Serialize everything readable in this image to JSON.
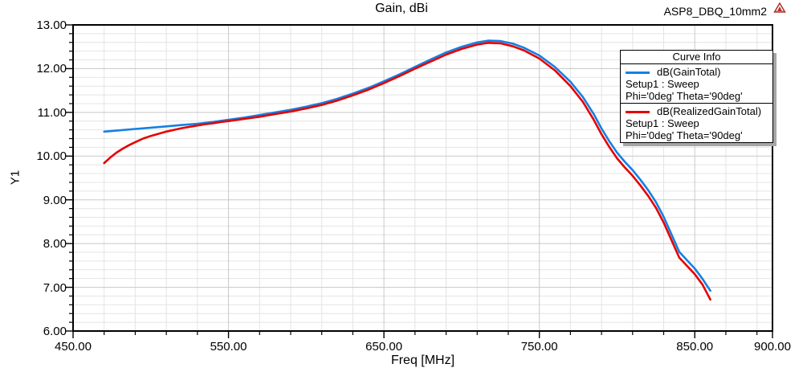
{
  "header": {
    "model_name": "ASP8_DBQ_10mm2",
    "logo_color": "#c03028"
  },
  "legend": {
    "title": "Curve Info",
    "entries": [
      {
        "label": "dB(GainTotal)",
        "color": "#1580e4",
        "line1": "Setup1 : Sweep",
        "line2": "Phi='0deg' Theta='90deg'"
      },
      {
        "label": "dB(RealizedGainTotal)",
        "color": "#e60000",
        "line1": "Setup1 : Sweep",
        "line2": "Phi='0deg' Theta='90deg'"
      }
    ]
  },
  "chart_data": {
    "type": "line",
    "title": "Gain, dBi",
    "xlabel": "Freq [MHz]",
    "ylabel": "Y1",
    "xlim": [
      450,
      900
    ],
    "ylim": [
      6,
      13
    ],
    "grid": "on",
    "legend_position": "top-right",
    "x_minor_step": 20,
    "y_minor_step": 0.2,
    "x_ticks": [
      {
        "v": 450,
        "label": "450.00"
      },
      {
        "v": 550,
        "label": "550.00"
      },
      {
        "v": 650,
        "label": "650.00"
      },
      {
        "v": 750,
        "label": "750.00"
      },
      {
        "v": 850,
        "label": "850.00"
      },
      {
        "v": 900,
        "label": "900.00"
      }
    ],
    "y_ticks": [
      {
        "v": 13,
        "label": "13.00"
      },
      {
        "v": 12,
        "label": "12.00"
      },
      {
        "v": 11,
        "label": "11.00"
      },
      {
        "v": 10,
        "label": "10.00"
      },
      {
        "v": 9,
        "label": "9.00"
      },
      {
        "v": 8,
        "label": "8.00"
      },
      {
        "v": 7,
        "label": "7.00"
      },
      {
        "v": 6,
        "label": "6.00"
      }
    ],
    "series": [
      {
        "name": "dB(GainTotal)",
        "color": "#1580e4",
        "points": [
          [
            470,
            10.56
          ],
          [
            480,
            10.59
          ],
          [
            490,
            10.62
          ],
          [
            500,
            10.65
          ],
          [
            510,
            10.68
          ],
          [
            520,
            10.71
          ],
          [
            530,
            10.74
          ],
          [
            540,
            10.78
          ],
          [
            550,
            10.83
          ],
          [
            560,
            10.88
          ],
          [
            570,
            10.94
          ],
          [
            580,
            11.0
          ],
          [
            590,
            11.06
          ],
          [
            600,
            11.13
          ],
          [
            610,
            11.21
          ],
          [
            620,
            11.31
          ],
          [
            630,
            11.43
          ],
          [
            640,
            11.56
          ],
          [
            650,
            11.71
          ],
          [
            660,
            11.87
          ],
          [
            670,
            12.04
          ],
          [
            680,
            12.21
          ],
          [
            690,
            12.37
          ],
          [
            700,
            12.5
          ],
          [
            710,
            12.6
          ],
          [
            717,
            12.64
          ],
          [
            725,
            12.63
          ],
          [
            733,
            12.57
          ],
          [
            740,
            12.48
          ],
          [
            750,
            12.3
          ],
          [
            760,
            12.04
          ],
          [
            770,
            11.7
          ],
          [
            778,
            11.35
          ],
          [
            785,
            10.96
          ],
          [
            790,
            10.63
          ],
          [
            795,
            10.34
          ],
          [
            800,
            10.08
          ],
          [
            805,
            9.87
          ],
          [
            810,
            9.68
          ],
          [
            815,
            9.46
          ],
          [
            820,
            9.22
          ],
          [
            825,
            8.95
          ],
          [
            830,
            8.61
          ],
          [
            835,
            8.21
          ],
          [
            840,
            7.81
          ],
          [
            845,
            7.62
          ],
          [
            850,
            7.43
          ],
          [
            855,
            7.19
          ],
          [
            860,
            6.92
          ]
        ]
      },
      {
        "name": "dB(RealizedGainTotal)",
        "color": "#e60000",
        "points": [
          [
            470,
            9.84
          ],
          [
            474,
            9.97
          ],
          [
            478,
            10.08
          ],
          [
            482,
            10.17
          ],
          [
            486,
            10.25
          ],
          [
            490,
            10.32
          ],
          [
            495,
            10.4
          ],
          [
            500,
            10.46
          ],
          [
            505,
            10.51
          ],
          [
            510,
            10.56
          ],
          [
            515,
            10.6
          ],
          [
            520,
            10.64
          ],
          [
            525,
            10.67
          ],
          [
            530,
            10.7
          ],
          [
            535,
            10.73
          ],
          [
            540,
            10.75
          ],
          [
            545,
            10.78
          ],
          [
            550,
            10.8
          ],
          [
            560,
            10.85
          ],
          [
            570,
            10.9
          ],
          [
            580,
            10.96
          ],
          [
            590,
            11.02
          ],
          [
            600,
            11.09
          ],
          [
            610,
            11.17
          ],
          [
            620,
            11.27
          ],
          [
            630,
            11.39
          ],
          [
            640,
            11.52
          ],
          [
            650,
            11.67
          ],
          [
            660,
            11.83
          ],
          [
            670,
            12.0
          ],
          [
            680,
            12.16
          ],
          [
            690,
            12.32
          ],
          [
            700,
            12.45
          ],
          [
            710,
            12.55
          ],
          [
            717,
            12.59
          ],
          [
            725,
            12.58
          ],
          [
            733,
            12.51
          ],
          [
            740,
            12.42
          ],
          [
            750,
            12.23
          ],
          [
            760,
            11.96
          ],
          [
            770,
            11.6
          ],
          [
            778,
            11.24
          ],
          [
            785,
            10.83
          ],
          [
            790,
            10.5
          ],
          [
            795,
            10.21
          ],
          [
            800,
            9.95
          ],
          [
            805,
            9.74
          ],
          [
            810,
            9.55
          ],
          [
            815,
            9.33
          ],
          [
            820,
            9.09
          ],
          [
            825,
            8.82
          ],
          [
            830,
            8.48
          ],
          [
            835,
            8.08
          ],
          [
            840,
            7.68
          ],
          [
            845,
            7.49
          ],
          [
            850,
            7.3
          ],
          [
            855,
            7.06
          ],
          [
            860,
            6.72
          ]
        ]
      }
    ]
  }
}
